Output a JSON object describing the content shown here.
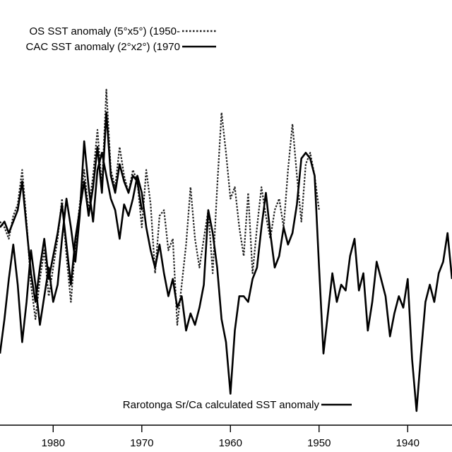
{
  "chart_data": {
    "type": "line",
    "xlabel": "",
    "ylabel": "",
    "xlim": [
      1986,
      1935
    ],
    "ylim": [
      -1.6,
      1.6
    ],
    "x_axis_reversed": true,
    "xticks": [
      1980,
      1970,
      1960,
      1950,
      1940
    ],
    "tick_labels": [
      "1980",
      "1970",
      "1960",
      "1950",
      "1940"
    ],
    "grid": false,
    "legend": [
      {
        "label": "OS SST anomaly (5°x5°) (1950-",
        "style": "dotted"
      },
      {
        "label": "CAC SST anomaly (2°x2°) (1970",
        "style": "solid"
      },
      {
        "label": "Rarotonga Sr/Ca calculated SST anomaly",
        "style": "solid"
      }
    ],
    "series": [
      {
        "name": "OS SST anomaly (5°x5°) (1950-",
        "style": "dotted",
        "color": "#222222",
        "x": [
          1986.0,
          1985.5,
          1985.0,
          1984.5,
          1984.0,
          1983.5,
          1983.0,
          1982.5,
          1982.0,
          1981.5,
          1981.0,
          1980.5,
          1980.0,
          1979.5,
          1979.0,
          1978.5,
          1978.0,
          1977.5,
          1977.0,
          1976.5,
          1976.0,
          1975.5,
          1975.0,
          1974.5,
          1974.0,
          1973.5,
          1973.0,
          1972.5,
          1972.0,
          1971.5,
          1971.0,
          1970.5,
          1970.0,
          1969.5,
          1969.0,
          1968.5,
          1968.0,
          1967.5,
          1967.0,
          1966.5,
          1966.0,
          1965.5,
          1965.0,
          1964.5,
          1964.0,
          1963.5,
          1963.0,
          1962.5,
          1962.0,
          1961.5,
          1961.0,
          1960.5,
          1960.0,
          1959.5,
          1959.0,
          1958.5,
          1958.0,
          1957.5,
          1957.0,
          1956.5,
          1956.0,
          1955.5,
          1955.0,
          1954.5,
          1954.0,
          1953.5,
          1953.0,
          1952.5,
          1952.0,
          1951.5,
          1951.0,
          1950.5,
          1950.0
        ],
        "values": [
          0.1,
          0.05,
          -0.05,
          0.15,
          0.25,
          0.55,
          0.1,
          -0.45,
          -0.75,
          -0.4,
          -0.15,
          -0.55,
          -0.3,
          -0.05,
          0.3,
          -0.2,
          -0.6,
          -0.1,
          0.25,
          0.55,
          0.2,
          0.5,
          0.9,
          0.4,
          1.25,
          0.55,
          0.4,
          0.75,
          0.5,
          0.35,
          0.55,
          0.45,
          0.05,
          0.55,
          0.25,
          -0.35,
          0.15,
          0.2,
          -0.15,
          -0.05,
          -0.8,
          -0.45,
          -0.1,
          0.4,
          -0.05,
          -0.3,
          -0.05,
          0.2,
          -0.35,
          0.4,
          1.05,
          0.7,
          0.3,
          0.4,
          0.05,
          -0.2,
          0.35,
          -0.35,
          0.05,
          0.4,
          0.15,
          -0.05,
          0.2,
          0.3,
          0.05,
          0.55,
          0.95,
          0.5,
          0.1,
          0.6,
          0.7,
          0.5,
          0.2
        ]
      },
      {
        "name": "CAC SST anomaly (2°x2°) (1970",
        "style": "solid",
        "color": "#000000",
        "x": [
          1986.0,
          1985.5,
          1985.0,
          1984.5,
          1984.0,
          1983.5,
          1983.0,
          1982.5,
          1982.0,
          1981.5,
          1981.0,
          1980.5,
          1980.0,
          1979.5,
          1979.0,
          1978.5,
          1978.0,
          1977.5,
          1977.0,
          1976.5,
          1976.0,
          1975.5,
          1975.0,
          1974.5,
          1974.0,
          1973.5,
          1973.0,
          1972.5,
          1972.0,
          1971.5,
          1971.0,
          1970.5,
          1970.0
        ],
        "values": [
          0.05,
          0.1,
          0.0,
          0.1,
          0.2,
          0.45,
          0.05,
          -0.35,
          -0.6,
          -0.3,
          -0.05,
          -0.4,
          -0.2,
          0.0,
          0.25,
          -0.1,
          -0.45,
          -0.05,
          0.2,
          0.45,
          0.15,
          0.4,
          0.75,
          0.35,
          1.05,
          0.5,
          0.35,
          0.6,
          0.45,
          0.35,
          0.5,
          0.45,
          0.2
        ]
      },
      {
        "name": "Rarotonga Sr/Ca calculated SST anomaly",
        "style": "solid",
        "color": "#000000",
        "x": [
          1986.0,
          1985.5,
          1985.0,
          1984.5,
          1984.0,
          1983.5,
          1983.0,
          1982.5,
          1982.0,
          1981.5,
          1981.0,
          1980.5,
          1980.0,
          1979.5,
          1979.0,
          1978.5,
          1978.0,
          1977.5,
          1977.0,
          1976.5,
          1976.0,
          1975.5,
          1975.0,
          1974.5,
          1974.0,
          1973.5,
          1973.0,
          1972.5,
          1972.0,
          1971.5,
          1971.0,
          1970.5,
          1970.0,
          1969.5,
          1969.0,
          1968.5,
          1968.0,
          1967.5,
          1967.0,
          1966.5,
          1966.0,
          1965.5,
          1965.0,
          1964.5,
          1964.0,
          1963.5,
          1963.0,
          1962.5,
          1962.0,
          1961.5,
          1961.0,
          1960.5,
          1960.0,
          1959.5,
          1959.0,
          1958.5,
          1958.0,
          1957.5,
          1957.0,
          1956.5,
          1956.0,
          1955.5,
          1955.0,
          1954.5,
          1954.0,
          1953.5,
          1953.0,
          1952.5,
          1952.0,
          1951.5,
          1951.0,
          1950.5,
          1950.0,
          1949.5,
          1949.0,
          1948.5,
          1948.0,
          1947.5,
          1947.0,
          1946.5,
          1946.0,
          1945.5,
          1945.0,
          1944.5,
          1944.0,
          1943.5,
          1943.0,
          1942.5,
          1942.0,
          1941.5,
          1941.0,
          1940.5,
          1940.0,
          1939.5,
          1939.0,
          1938.5,
          1938.0,
          1937.5,
          1937.0,
          1936.5,
          1936.0,
          1935.5,
          1935.0
        ],
        "values": [
          -1.05,
          -0.75,
          -0.4,
          -0.1,
          -0.45,
          -0.95,
          -0.6,
          -0.15,
          -0.45,
          -0.8,
          -0.55,
          -0.3,
          -0.6,
          -0.45,
          -0.05,
          0.3,
          0.05,
          -0.25,
          0.15,
          0.8,
          0.4,
          0.1,
          0.55,
          0.7,
          0.5,
          0.3,
          0.2,
          -0.05,
          0.25,
          0.15,
          0.3,
          0.5,
          0.35,
          0.05,
          -0.15,
          -0.3,
          -0.1,
          -0.35,
          -0.55,
          -0.4,
          -0.65,
          -0.55,
          -0.85,
          -0.7,
          -0.8,
          -0.65,
          -0.45,
          0.2,
          0.0,
          -0.3,
          -0.75,
          -0.95,
          -1.4,
          -0.85,
          -0.55,
          -0.55,
          -0.6,
          -0.4,
          -0.3,
          0.05,
          0.35,
          0.0,
          -0.3,
          -0.2,
          0.05,
          -0.1,
          0.0,
          0.25,
          0.65,
          0.7,
          0.65,
          0.5,
          -0.3,
          -1.05,
          -0.7,
          -0.35,
          -0.6,
          -0.45,
          -0.5,
          -0.2,
          -0.05,
          -0.5,
          -0.35,
          -0.85,
          -0.6,
          -0.25,
          -0.4,
          -0.55,
          -0.9,
          -0.7,
          -0.55,
          -0.65,
          -0.4,
          -1.1,
          -1.55,
          -1.05,
          -0.6,
          -0.45,
          -0.6,
          -0.35,
          -0.25,
          0.0,
          -0.4
        ]
      }
    ]
  }
}
